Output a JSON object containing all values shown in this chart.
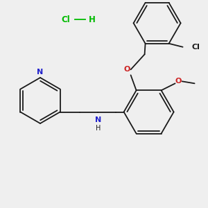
{
  "background_color": "#efefef",
  "bond_color": "#1a1a1a",
  "bond_width": 1.3,
  "hcl_color": "#00bb00",
  "N_color": "#2222cc",
  "O_color": "#cc2222",
  "figsize": [
    3.0,
    3.0
  ],
  "dpi": 100,
  "xlim": [
    0,
    300
  ],
  "ylim": [
    0,
    300
  ]
}
